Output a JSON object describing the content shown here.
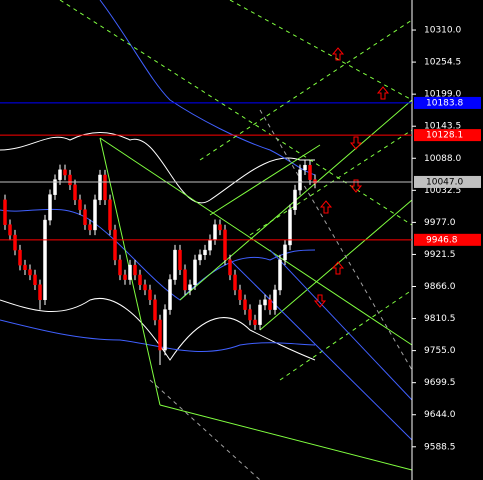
{
  "chart_data": {
    "type": "candlestick",
    "ylim": [
      9531,
      10362
    ],
    "yticks": [
      {
        "value": 10310,
        "label": "10310.0"
      },
      10254.5,
      {
        "value": 10199,
        "label": "10199.0"
      },
      10143.5,
      {
        "value": 10088,
        "label": "10088.0"
      },
      10032.5,
      {
        "value": 9977,
        "label": "9977.0"
      },
      9921.5,
      {
        "value": 9866,
        "label": "9866.0"
      },
      9810.5,
      {
        "value": 9755,
        "label": "9755.0"
      },
      9699.5,
      {
        "value": 9644,
        "label": "9644.0"
      },
      9588.5
    ],
    "grid": false,
    "up_color": "#ffffff",
    "down_color": "#ff0000",
    "open": [
      10016,
      9973,
      9955,
      9929,
      9903,
      9895,
      9886,
      9869,
      9843,
      9981,
      10025,
      10051,
      10068,
      10059,
      10042,
      10016,
      9999,
      9973,
      9964,
      10016,
      10059,
      10016,
      9964,
      9912,
      9886,
      9878,
      9903,
      9886,
      9869,
      9860,
      9843,
      9808,
      9756,
      9826,
      9878,
      9929,
      9895,
      9860,
      9869,
      9912,
      9921,
      9929,
      9947,
      9973,
      9964,
      9912,
      9886,
      9860,
      9843,
      9826,
      9808,
      9800,
      9834,
      9843,
      9826,
      9860,
      9912,
      9938,
      9999,
      10033,
      10068,
      10076,
      10051
    ],
    "high": [
      10025,
      9982,
      9964,
      9938,
      9912,
      9904,
      9895,
      9878,
      9990,
      10034,
      10060,
      10077,
      10077,
      10068,
      10051,
      10025,
      10008,
      9982,
      10025,
      10068,
      10068,
      10025,
      9973,
      9921,
      9895,
      9912,
      9912,
      9895,
      9878,
      9869,
      9852,
      9817,
      9835,
      9887,
      9938,
      9938,
      9904,
      9878,
      9921,
      9930,
      9938,
      9956,
      9982,
      9982,
      9973,
      9921,
      9895,
      9869,
      9852,
      9835,
      9817,
      9843,
      9852,
      9852,
      9869,
      9921,
      9947,
      10008,
      10042,
      10077,
      10085,
      10085,
      10060
    ],
    "low": [
      9964,
      9946,
      9920,
      9894,
      9886,
      9877,
      9860,
      9826,
      9834,
      9972,
      10016,
      10042,
      10050,
      10033,
      10007,
      9990,
      9964,
      9955,
      9955,
      10007,
      10007,
      9955,
      9903,
      9877,
      9869,
      9869,
      9877,
      9860,
      9851,
      9834,
      9799,
      9730,
      9747,
      9817,
      9869,
      9886,
      9851,
      9851,
      9860,
      9903,
      9912,
      9920,
      9938,
      9955,
      9903,
      9877,
      9851,
      9834,
      9817,
      9799,
      9791,
      9791,
      9825,
      9817,
      9817,
      9851,
      9903,
      9929,
      9990,
      10024,
      10059,
      10042,
      10036
    ],
    "close": [
      9973,
      9955,
      9929,
      9903,
      9895,
      9886,
      9869,
      9843,
      9981,
      10025,
      10051,
      10068,
      10059,
      10042,
      10016,
      9999,
      9973,
      9964,
      10016,
      10059,
      10016,
      9964,
      9912,
      9886,
      9878,
      9903,
      9886,
      9869,
      9860,
      9843,
      9808,
      9756,
      9826,
      9878,
      9929,
      9895,
      9860,
      9869,
      9912,
      9921,
      9929,
      9947,
      9973,
      9964,
      9912,
      9886,
      9860,
      9843,
      9826,
      9808,
      9800,
      9834,
      9843,
      9826,
      9860,
      9912,
      9938,
      9999,
      10033,
      10068,
      10076,
      10051,
      10045
    ],
    "hlines": [
      {
        "value": 10183.8,
        "color": "#0000ff",
        "text_color": "#ffffff"
      },
      {
        "value": 10128.1,
        "color": "#ff0000",
        "text_color": "#ffffff"
      },
      {
        "value": 10047,
        "label": "10047.0",
        "color": "#c0c0c0",
        "text_color": "#000000"
      },
      {
        "value": 9946.8,
        "color": "#ff0000",
        "text_color": "#ffffff"
      }
    ]
  }
}
